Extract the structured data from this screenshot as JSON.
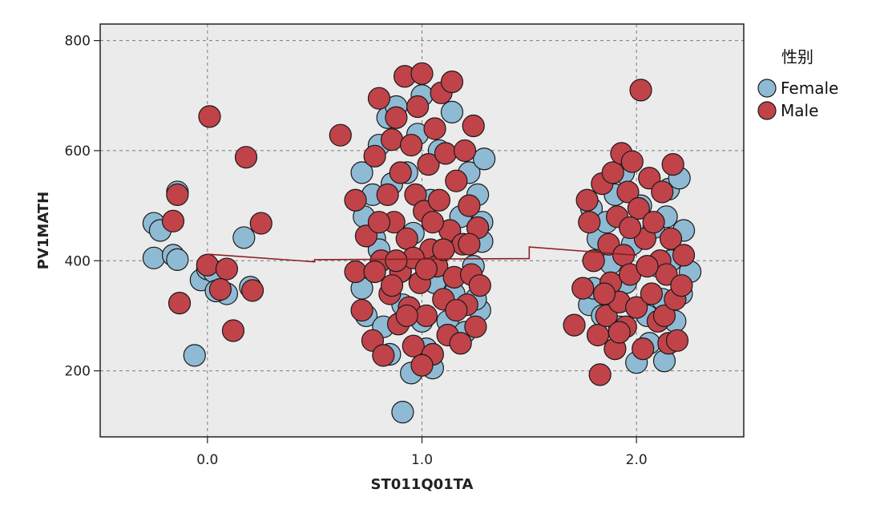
{
  "chart_data": {
    "type": "scatter",
    "title": "",
    "xlabel": "ST011Q01TA",
    "ylabel": "PV1MATH",
    "xlim": [
      -0.5,
      2.5
    ],
    "ylim": [
      80,
      830
    ],
    "x_ticks": [
      "0.0",
      "1.0",
      "2.0"
    ],
    "x_tick_values": [
      0,
      1,
      2
    ],
    "y_ticks": [
      "200",
      "400",
      "600",
      "800"
    ],
    "y_tick_values": [
      200,
      400,
      600,
      800
    ],
    "grid": true,
    "legend": {
      "title": "性别",
      "placement": "right"
    },
    "series": [
      {
        "name": "Female",
        "color": "#8fbad4",
        "points": [
          [
            -0.25,
            468
          ],
          [
            -0.25,
            405
          ],
          [
            -0.22,
            455
          ],
          [
            -0.14,
            525
          ],
          [
            -0.16,
            410
          ],
          [
            -0.14,
            402
          ],
          [
            -0.06,
            228
          ],
          [
            -0.03,
            365
          ],
          [
            0.0,
            385
          ],
          [
            0.03,
            380
          ],
          [
            0.09,
            340
          ],
          [
            0.17,
            442
          ],
          [
            0.2,
            352
          ],
          [
            0.04,
            345
          ],
          [
            0.72,
            560
          ],
          [
            0.73,
            480
          ],
          [
            0.72,
            350
          ],
          [
            0.74,
            300
          ],
          [
            0.77,
            520
          ],
          [
            0.78,
            440
          ],
          [
            0.8,
            610
          ],
          [
            0.82,
            280
          ],
          [
            0.84,
            660
          ],
          [
            0.85,
            230
          ],
          [
            0.86,
            540
          ],
          [
            0.88,
            680
          ],
          [
            0.9,
            380
          ],
          [
            0.91,
            320
          ],
          [
            0.93,
            560
          ],
          [
            0.95,
            196
          ],
          [
            0.96,
            450
          ],
          [
            0.98,
            630
          ],
          [
            1.0,
            700
          ],
          [
            1.02,
            240
          ],
          [
            1.04,
            510
          ],
          [
            1.05,
            205
          ],
          [
            1.06,
            360
          ],
          [
            1.08,
            600
          ],
          [
            1.1,
            420
          ],
          [
            1.12,
            290
          ],
          [
            1.14,
            670
          ],
          [
            1.15,
            340
          ],
          [
            1.18,
            480
          ],
          [
            1.2,
            270
          ],
          [
            1.22,
            560
          ],
          [
            1.24,
            390
          ],
          [
            1.26,
            520
          ],
          [
            1.27,
            310
          ],
          [
            1.28,
            470
          ],
          [
            1.29,
            585
          ],
          [
            1.28,
            435
          ],
          [
            1.26,
            460
          ],
          [
            1.25,
            330
          ],
          [
            0.91,
            125
          ],
          [
            1.0,
            290
          ],
          [
            0.8,
            420
          ],
          [
            1.78,
            320
          ],
          [
            1.79,
            495
          ],
          [
            1.8,
            350
          ],
          [
            1.82,
            440
          ],
          [
            1.84,
            300
          ],
          [
            1.86,
            470
          ],
          [
            1.88,
            395
          ],
          [
            1.9,
            520
          ],
          [
            1.92,
            280
          ],
          [
            1.94,
            560
          ],
          [
            1.95,
            360
          ],
          [
            1.98,
            430
          ],
          [
            2.0,
            215
          ],
          [
            2.02,
            500
          ],
          [
            2.05,
            300
          ],
          [
            2.06,
            250
          ],
          [
            2.08,
            460
          ],
          [
            2.1,
            390
          ],
          [
            2.12,
            330
          ],
          [
            2.13,
            218
          ],
          [
            2.15,
            530
          ],
          [
            2.16,
            400
          ],
          [
            2.18,
            290
          ],
          [
            2.2,
            550
          ],
          [
            2.21,
            340
          ],
          [
            2.25,
            380
          ],
          [
            2.22,
            455
          ],
          [
            2.14,
            480
          ]
        ]
      },
      {
        "name": "Male",
        "color": "#c0434a",
        "points": [
          [
            0.01,
            662
          ],
          [
            -0.14,
            520
          ],
          [
            -0.16,
            472
          ],
          [
            -0.13,
            323
          ],
          [
            0.0,
            392
          ],
          [
            0.09,
            385
          ],
          [
            0.18,
            588
          ],
          [
            0.25,
            468
          ],
          [
            0.21,
            346
          ],
          [
            0.12,
            273
          ],
          [
            0.06,
            348
          ],
          [
            0.62,
            628
          ],
          [
            0.69,
            510
          ],
          [
            0.69,
            380
          ],
          [
            0.72,
            310
          ],
          [
            0.74,
            445
          ],
          [
            0.77,
            255
          ],
          [
            0.78,
            590
          ],
          [
            0.8,
            695
          ],
          [
            0.81,
            400
          ],
          [
            0.82,
            228
          ],
          [
            0.84,
            520
          ],
          [
            0.85,
            340
          ],
          [
            0.86,
            620
          ],
          [
            0.87,
            470
          ],
          [
            0.88,
            660
          ],
          [
            0.89,
            285
          ],
          [
            0.9,
            560
          ],
          [
            0.9,
            380
          ],
          [
            0.92,
            735
          ],
          [
            0.93,
            440
          ],
          [
            0.94,
            315
          ],
          [
            0.95,
            610
          ],
          [
            0.96,
            245
          ],
          [
            0.97,
            520
          ],
          [
            0.98,
            680
          ],
          [
            0.99,
            360
          ],
          [
            1.0,
            740
          ],
          [
            1.01,
            490
          ],
          [
            1.02,
            300
          ],
          [
            1.03,
            575
          ],
          [
            1.04,
            420
          ],
          [
            1.05,
            230
          ],
          [
            1.06,
            640
          ],
          [
            1.07,
            390
          ],
          [
            1.08,
            510
          ],
          [
            1.09,
            705
          ],
          [
            1.1,
            330
          ],
          [
            1.11,
            595
          ],
          [
            1.12,
            265
          ],
          [
            1.13,
            455
          ],
          [
            1.14,
            725
          ],
          [
            1.15,
            370
          ],
          [
            1.16,
            545
          ],
          [
            1.18,
            250
          ],
          [
            1.19,
            430
          ],
          [
            1.2,
            600
          ],
          [
            1.21,
            320
          ],
          [
            1.22,
            500
          ],
          [
            1.23,
            375
          ],
          [
            1.24,
            645
          ],
          [
            1.25,
            280
          ],
          [
            1.26,
            460
          ],
          [
            1.27,
            355
          ],
          [
            1.0,
            210
          ],
          [
            0.93,
            300
          ],
          [
            0.96,
            405
          ],
          [
            1.02,
            385
          ],
          [
            1.05,
            470
          ],
          [
            0.88,
            400
          ],
          [
            0.86,
            355
          ],
          [
            0.8,
            470
          ],
          [
            0.78,
            380
          ],
          [
            1.1,
            420
          ],
          [
            1.16,
            310
          ],
          [
            1.22,
            430
          ],
          [
            1.71,
            283
          ],
          [
            1.75,
            350
          ],
          [
            1.77,
            510
          ],
          [
            1.78,
            470
          ],
          [
            1.8,
            400
          ],
          [
            1.82,
            265
          ],
          [
            1.83,
            193
          ],
          [
            1.84,
            540
          ],
          [
            1.86,
            300
          ],
          [
            1.87,
            430
          ],
          [
            1.88,
            360
          ],
          [
            1.89,
            560
          ],
          [
            1.9,
            240
          ],
          [
            1.91,
            480
          ],
          [
            1.92,
            325
          ],
          [
            1.93,
            595
          ],
          [
            1.94,
            410
          ],
          [
            1.95,
            280
          ],
          [
            1.96,
            525
          ],
          [
            1.97,
            375
          ],
          [
            1.98,
            580
          ],
          [
            2.0,
            315
          ],
          [
            2.01,
            495
          ],
          [
            2.02,
            710
          ],
          [
            2.03,
            240
          ],
          [
            2.04,
            440
          ],
          [
            2.06,
            550
          ],
          [
            2.07,
            340
          ],
          [
            2.08,
            470
          ],
          [
            2.1,
            290
          ],
          [
            2.11,
            400
          ],
          [
            2.12,
            525
          ],
          [
            2.13,
            300
          ],
          [
            2.14,
            375
          ],
          [
            2.15,
            250
          ],
          [
            2.16,
            440
          ],
          [
            2.17,
            575
          ],
          [
            2.18,
            330
          ],
          [
            2.19,
            255
          ],
          [
            2.21,
            355
          ],
          [
            2.22,
            410
          ],
          [
            2.05,
            390
          ],
          [
            1.97,
            460
          ],
          [
            1.85,
            340
          ],
          [
            1.92,
            270
          ]
        ]
      }
    ],
    "fit_line": {
      "color": "#8b2020",
      "points": [
        [
          0.0,
          412
        ],
        [
          0.5,
          398
        ],
        [
          0.5,
          402
        ],
        [
          1.5,
          404
        ],
        [
          1.5,
          425
        ],
        [
          2.0,
          410
        ]
      ]
    }
  }
}
